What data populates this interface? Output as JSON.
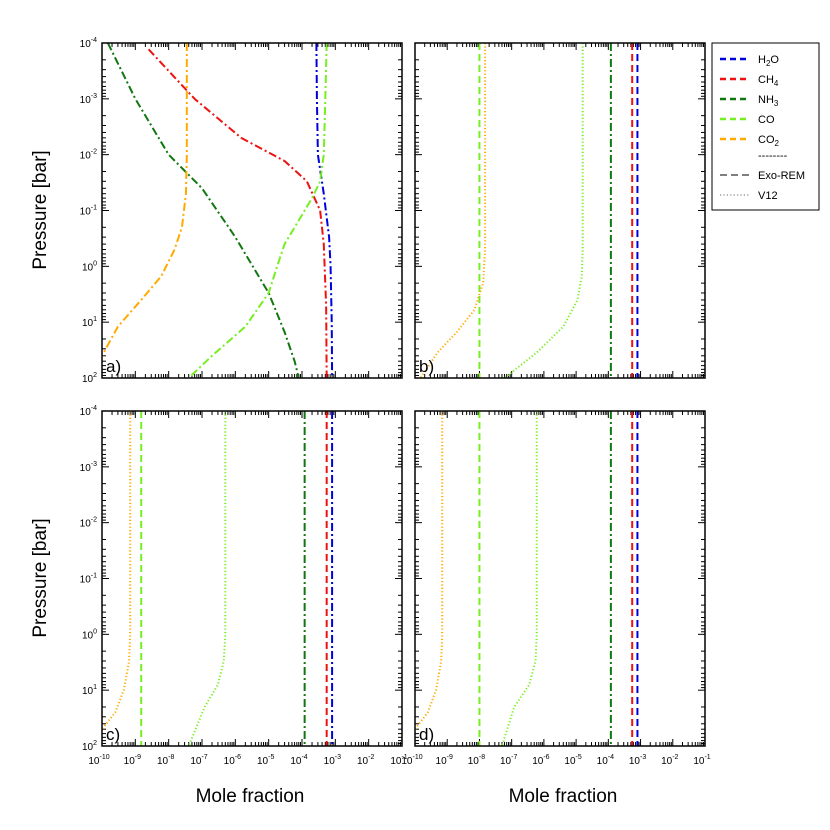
{
  "chart_data": {
    "type": "line",
    "xlabel": "Mole fraction",
    "ylabel": "Pressure [bar]",
    "x_scale": "log",
    "y_scale": "log",
    "xlim": [
      1e-10,
      0.1
    ],
    "ylim": [
      100,
      0.0001
    ],
    "x_ticks": [
      {
        "base": "10",
        "exp": "-10"
      },
      {
        "base": "10",
        "exp": "-9"
      },
      {
        "base": "10",
        "exp": "-8"
      },
      {
        "base": "10",
        "exp": "-7"
      },
      {
        "base": "10",
        "exp": "-6"
      },
      {
        "base": "10",
        "exp": "-5"
      },
      {
        "base": "10",
        "exp": "-4"
      },
      {
        "base": "10",
        "exp": "-3"
      },
      {
        "base": "10",
        "exp": "-2"
      },
      {
        "base": "10",
        "exp": "-1"
      }
    ],
    "y_ticks": [
      {
        "base": "10",
        "exp": "-4"
      },
      {
        "base": "10",
        "exp": "-3"
      },
      {
        "base": "10",
        "exp": "-2"
      },
      {
        "base": "10",
        "exp": "-1"
      },
      {
        "base": "10",
        "exp": "0"
      },
      {
        "base": "10",
        "exp": "1"
      },
      {
        "base": "10",
        "exp": "2"
      }
    ],
    "legend": {
      "position": "right",
      "species": [
        {
          "name": "H",
          "sub": "2",
          "rest": "O",
          "color": "#0000dd"
        },
        {
          "name": "CH",
          "sub": "4",
          "rest": "",
          "color": "#ee1111"
        },
        {
          "name": "NH",
          "sub": "3",
          "rest": "",
          "color": "#117711"
        },
        {
          "name": "CO",
          "sub": "",
          "rest": "",
          "color": "#77ee22"
        },
        {
          "name": "CO",
          "sub": "2",
          "rest": "",
          "color": "#ffaa00"
        }
      ],
      "separator": "--------",
      "models": [
        {
          "name": "Exo-REM",
          "style": "dashed"
        },
        {
          "name": "V12",
          "style": "dotted"
        }
      ]
    },
    "panels": [
      {
        "label": "a)",
        "series": [
          {
            "species": "H2O",
            "model": "Exo-REM",
            "style": "dashdot",
            "color": "#0000dd",
            "points": [
              [
                0.00027,
                0.0001
              ],
              [
                0.00028,
                0.001
              ],
              [
                0.0003,
                0.01
              ],
              [
                0.00045,
                0.05
              ],
              [
                0.00065,
                0.3
              ],
              [
                0.00072,
                1
              ],
              [
                0.00078,
                10
              ],
              [
                0.0008,
                100
              ]
            ]
          },
          {
            "species": "CH4",
            "model": "Exo-REM",
            "style": "dashdot",
            "color": "#ee1111",
            "points": [
              [
                2.5e-09,
                0.00013
              ],
              [
                6e-08,
                0.001
              ],
              [
                1.5e-06,
                0.005
              ],
              [
                3e-05,
                0.013
              ],
              [
                0.00014,
                0.03
              ],
              [
                0.00035,
                0.1
              ],
              [
                0.00045,
                0.4
              ],
              [
                0.00053,
                5
              ],
              [
                0.00055,
                100
              ]
            ]
          },
          {
            "species": "NH3",
            "model": "Exo-REM",
            "style": "dashdot",
            "color": "#117711",
            "points": [
              [
                1.5e-10,
                0.0001
              ],
              [
                1e-09,
                0.001
              ],
              [
                1e-08,
                0.01
              ],
              [
                1e-07,
                0.04
              ],
              [
                1e-06,
                0.3
              ],
              [
                1e-05,
                3
              ],
              [
                3e-05,
                15
              ],
              [
                6e-05,
                50
              ],
              [
                8e-05,
                100
              ]
            ]
          },
          {
            "species": "CO",
            "model": "Exo-REM",
            "style": "dashdot",
            "color": "#77ee22",
            "points": [
              [
                0.00055,
                0.0001
              ],
              [
                0.0005,
                0.001
              ],
              [
                0.00045,
                0.01
              ],
              [
                0.00035,
                0.03
              ],
              [
                0.0002,
                0.06
              ],
              [
                8e-05,
                0.15
              ],
              [
                3e-05,
                0.4
              ],
              [
                1.8e-05,
                1
              ],
              [
                1e-05,
                3
              ],
              [
                2e-06,
                12
              ],
              [
                2e-07,
                40
              ],
              [
                4e-08,
                100
              ]
            ]
          },
          {
            "species": "CO2",
            "model": "Exo-REM",
            "style": "dashdot",
            "color": "#ffaa00",
            "points": [
              [
                3.5e-08,
                0.0001
              ],
              [
                3.5e-08,
                0.01
              ],
              [
                3.3e-08,
                0.05
              ],
              [
                2.5e-08,
                0.2
              ],
              [
                1.5e-08,
                0.5
              ],
              [
                6e-09,
                1.5
              ],
              [
                1.5e-09,
                4
              ],
              [
                3e-10,
                12
              ],
              [
                1e-10,
                40
              ]
            ]
          }
        ]
      },
      {
        "label": "b)",
        "series": [
          {
            "species": "H2O",
            "model": "Exo-REM",
            "style": "dashed",
            "color": "#0000dd",
            "points": [
              [
                0.0008,
                0.0001
              ],
              [
                0.0008,
                100
              ]
            ]
          },
          {
            "species": "CH4",
            "model": "Exo-REM",
            "style": "dashed",
            "color": "#ee1111",
            "points": [
              [
                0.00055,
                0.0001
              ],
              [
                0.00055,
                100
              ]
            ]
          },
          {
            "species": "NH3",
            "model": "Exo-REM",
            "style": "dashdot",
            "color": "#117711",
            "points": [
              [
                0.00012,
                0.0001
              ],
              [
                0.00012,
                100
              ]
            ]
          },
          {
            "species": "CO",
            "model": "Exo-REM",
            "style": "dashed",
            "color": "#77ee22",
            "points": [
              [
                1e-08,
                0.0001
              ],
              [
                1e-08,
                100
              ]
            ]
          },
          {
            "species": "CO",
            "model": "V12",
            "style": "dotted",
            "color": "#77ee22",
            "points": [
              [
                1.6e-05,
                0.0001
              ],
              [
                1.6e-05,
                0.5
              ],
              [
                1.5e-05,
                1.5
              ],
              [
                1.1e-05,
                4
              ],
              [
                4e-06,
                12
              ],
              [
                6e-07,
                35
              ],
              [
                6e-08,
                100
              ]
            ]
          },
          {
            "species": "CO2",
            "model": "V12",
            "style": "dotted",
            "color": "#ffaa00",
            "points": [
              [
                1.5e-08,
                0.0001
              ],
              [
                1.5e-08,
                0.5
              ],
              [
                1.3e-08,
                2
              ],
              [
                7e-09,
                6
              ],
              [
                2e-09,
                15
              ],
              [
                5e-10,
                35
              ],
              [
                1.5e-10,
                100
              ]
            ]
          }
        ]
      },
      {
        "label": "c)",
        "series": [
          {
            "species": "H2O",
            "model": "Exo-REM",
            "style": "dashdot",
            "color": "#0000dd",
            "points": [
              [
                0.0008,
                0.0001
              ],
              [
                0.0008,
                100
              ]
            ]
          },
          {
            "species": "CH4",
            "model": "Exo-REM",
            "style": "dashed",
            "color": "#ee1111",
            "points": [
              [
                0.00055,
                0.0001
              ],
              [
                0.00055,
                100
              ]
            ]
          },
          {
            "species": "NH3",
            "model": "Exo-REM",
            "style": "dashdot",
            "color": "#117711",
            "points": [
              [
                0.00012,
                0.0001
              ],
              [
                0.00012,
                100
              ]
            ]
          },
          {
            "species": "CO",
            "model": "Exo-REM",
            "style": "dashed",
            "color": "#77ee22",
            "points": [
              [
                1.5e-09,
                0.0001
              ],
              [
                1.5e-09,
                100
              ]
            ]
          },
          {
            "species": "CO",
            "model": "V12",
            "style": "dotted",
            "color": "#77ee22",
            "points": [
              [
                5e-07,
                0.0001
              ],
              [
                5e-07,
                1
              ],
              [
                4.5e-07,
                3
              ],
              [
                3e-07,
                8
              ],
              [
                1.2e-07,
                20
              ],
              [
                4e-08,
                100
              ]
            ]
          },
          {
            "species": "CO2",
            "model": "V12",
            "style": "dotted",
            "color": "#ffaa00",
            "points": [
              [
                7e-10,
                0.0001
              ],
              [
                7e-10,
                1
              ],
              [
                6.5e-10,
                3
              ],
              [
                4.5e-10,
                10
              ],
              [
                2.5e-10,
                25
              ],
              [
                1e-10,
                50
              ]
            ]
          }
        ]
      },
      {
        "label": "d)",
        "series": [
          {
            "species": "H2O",
            "model": "Exo-REM",
            "style": "dashed",
            "color": "#0000dd",
            "points": [
              [
                0.0008,
                0.0001
              ],
              [
                0.0008,
                100
              ]
            ]
          },
          {
            "species": "CH4",
            "model": "Exo-REM",
            "style": "dashed",
            "color": "#ee1111",
            "points": [
              [
                0.00055,
                0.0001
              ],
              [
                0.00055,
                100
              ]
            ]
          },
          {
            "species": "NH3",
            "model": "Exo-REM",
            "style": "dashdot",
            "color": "#117711",
            "points": [
              [
                0.00012,
                0.0001
              ],
              [
                0.00012,
                100
              ]
            ]
          },
          {
            "species": "CO",
            "model": "Exo-REM",
            "style": "dashed",
            "color": "#77ee22",
            "points": [
              [
                1e-08,
                0.0001
              ],
              [
                1e-08,
                100
              ]
            ]
          },
          {
            "species": "CO",
            "model": "V12",
            "style": "dotted",
            "color": "#77ee22",
            "points": [
              [
                6e-07,
                0.0001
              ],
              [
                6e-07,
                1
              ],
              [
                5.5e-07,
                3
              ],
              [
                3.5e-07,
                8
              ],
              [
                1.2e-07,
                20
              ],
              [
                5e-08,
                100
              ]
            ]
          },
          {
            "species": "CO2",
            "model": "V12",
            "style": "dotted",
            "color": "#ffaa00",
            "points": [
              [
                7e-10,
                0.0001
              ],
              [
                7e-10,
                1
              ],
              [
                6.5e-10,
                3
              ],
              [
                4.5e-10,
                10
              ],
              [
                2.5e-10,
                25
              ],
              [
                1e-10,
                50
              ]
            ]
          }
        ]
      }
    ]
  }
}
